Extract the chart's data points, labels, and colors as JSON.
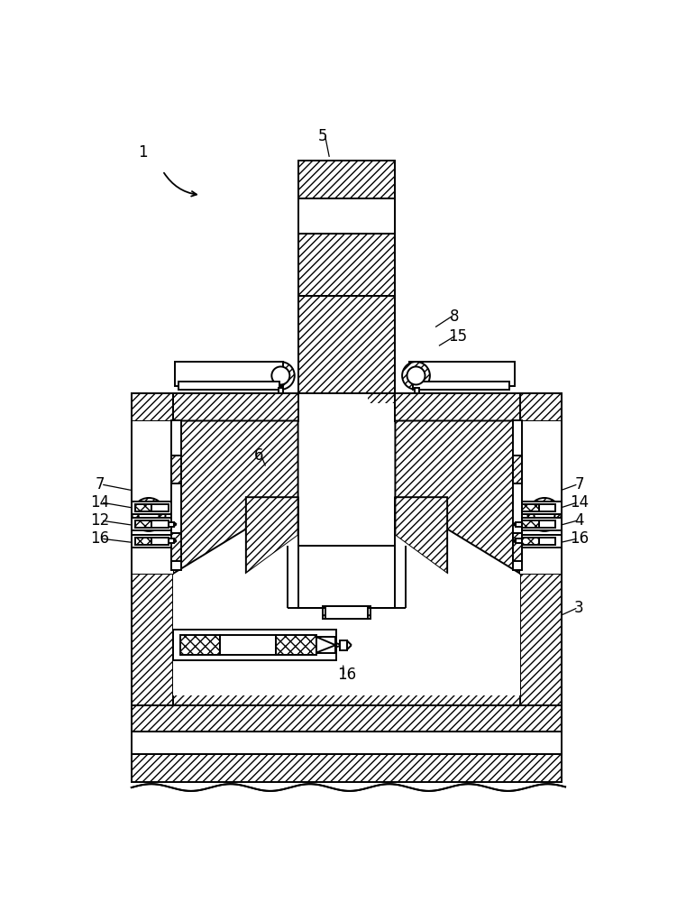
{
  "bg_color": "#ffffff",
  "line_color": "#000000",
  "figsize": [
    7.51,
    10.0
  ],
  "dpi": 100
}
